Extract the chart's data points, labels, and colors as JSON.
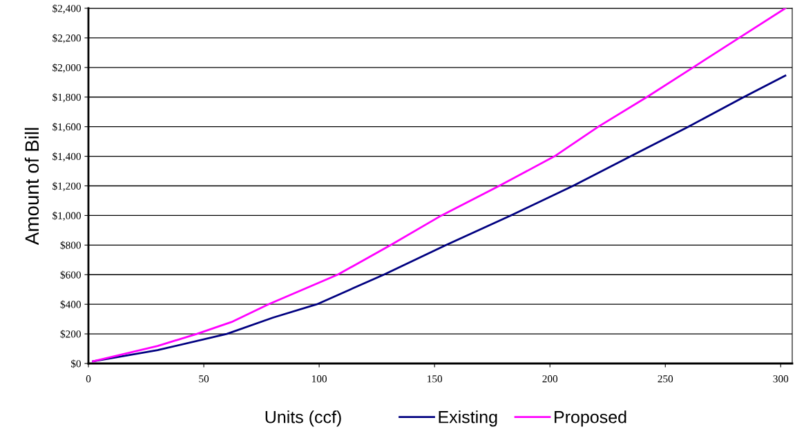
{
  "chart_data": {
    "type": "line",
    "xlabel": "Units (ccf)",
    "ylabel": "Amount of Bill",
    "xlim": [
      0,
      305
    ],
    "xticks": [
      0,
      50,
      100,
      150,
      200,
      250,
      300
    ],
    "ylim": [
      0,
      2400
    ],
    "yticks": [
      {
        "value": 0,
        "label": "$0"
      },
      {
        "value": 200,
        "label": "$200"
      },
      {
        "value": 400,
        "label": "$400"
      },
      {
        "value": 600,
        "label": "$600"
      },
      {
        "value": 800,
        "label": "$800"
      },
      {
        "value": 1000,
        "label": "$1,000"
      },
      {
        "value": 1200,
        "label": "$1,200"
      },
      {
        "value": 1400,
        "label": "$1,400"
      },
      {
        "value": 1600,
        "label": "$1,600"
      },
      {
        "value": 1800,
        "label": "$1,800"
      },
      {
        "value": 2000,
        "label": "$2,000"
      },
      {
        "value": 2200,
        "label": "$2,200"
      },
      {
        "value": 2400,
        "label": "$2,400"
      }
    ],
    "grid": "y",
    "legend": "bottom",
    "marker": "none",
    "line_style": "solid",
    "series": [
      {
        "name": "Existing",
        "color": "#000080",
        "x": [
          2,
          30,
          60,
          80,
          99,
          128,
          155,
          183,
          210,
          235,
          260,
          284,
          302
        ],
        "values": [
          15,
          90,
          200,
          310,
          400,
          600,
          800,
          1000,
          1200,
          1400,
          1600,
          1800,
          1945
        ]
      },
      {
        "name": "Proposed",
        "color": "#ff00ff",
        "x": [
          2,
          30,
          47,
          62,
          78,
          108,
          131,
          153,
          178,
          202,
          221,
          242,
          262,
          282,
          302
        ],
        "values": [
          15,
          118,
          200,
          280,
          400,
          600,
          800,
          1000,
          1200,
          1400,
          1600,
          1800,
          2000,
          2200,
          2400
        ]
      }
    ]
  }
}
